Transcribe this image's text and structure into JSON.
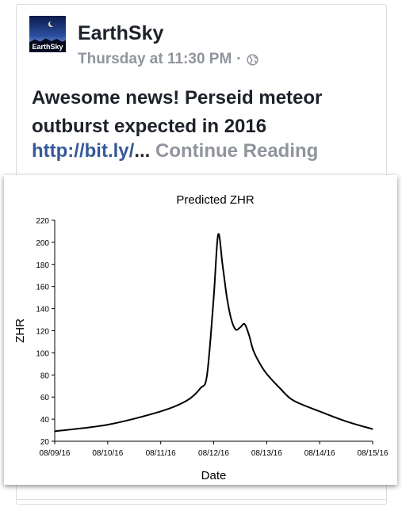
{
  "post": {
    "author": "EarthSky",
    "avatar_text": "EarthSky",
    "timestamp": "Thursday at 11:30 PM",
    "separator": "·",
    "audience_icon": "globe-icon",
    "text": "Awesome news! Perseid meteor outburst expected in 2016",
    "link": "http://bit.ly/",
    "ellipsis": "...",
    "continue_label": "Continue Reading"
  },
  "chart_data": {
    "type": "line",
    "title": "Predicted ZHR",
    "xlabel": "Date",
    "ylabel": "ZHR",
    "x_tick_labels": [
      "08/09/16",
      "08/10/16",
      "08/11/16",
      "08/12/16",
      "08/13/16",
      "08/14/16",
      "08/15/16"
    ],
    "y_ticks": [
      20,
      40,
      60,
      80,
      100,
      120,
      140,
      160,
      180,
      200,
      220
    ],
    "xlim": [
      "08/09/16",
      "08/15/16"
    ],
    "ylim": [
      20,
      220
    ],
    "grid": false,
    "series": [
      {
        "x": [
          "08/09/16 00:00",
          "08/10/16 00:00",
          "08/11/16 00:00",
          "08/11/16 12:00",
          "08/11/16 18:00",
          "08/11/16 21:00",
          "08/12/16 00:00",
          "08/12/16 02:00",
          "08/12/16 04:00",
          "08/12/16 06:00",
          "08/12/16 08:00",
          "08/12/16 10:00",
          "08/12/16 12:00",
          "08/12/16 14:00",
          "08/12/16 16:00",
          "08/12/16 18:00",
          "08/12/16 21:00",
          "08/13/16 00:00",
          "08/13/16 06:00",
          "08/13/16 12:00",
          "08/14/16 00:00",
          "08/14/16 12:00",
          "08/15/16 00:00"
        ],
        "y": [
          29,
          35,
          47,
          57,
          68,
          80,
          150,
          207,
          180,
          150,
          130,
          121,
          123,
          126,
          116,
          102,
          90,
          81,
          68,
          57,
          47,
          38,
          31
        ],
        "color": "#000000"
      }
    ]
  }
}
